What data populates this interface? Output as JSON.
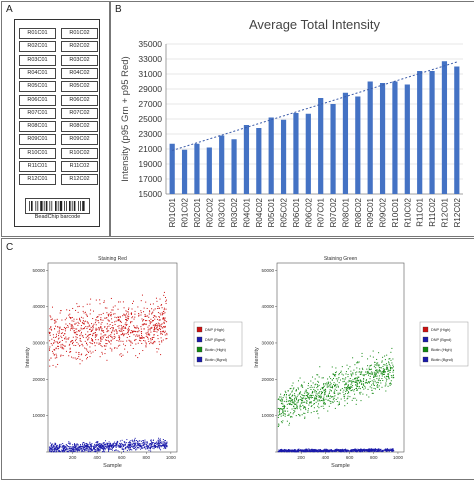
{
  "panel_a": {
    "letter": "A",
    "chip_rows": [
      [
        "R01C01",
        "R01C02"
      ],
      [
        "R02C01",
        "R02C02"
      ],
      [
        "R03C01",
        "R03C02"
      ],
      [
        "R04C01",
        "R04C02"
      ],
      [
        "R05C01",
        "R05C02"
      ],
      [
        "R06C01",
        "R06C02"
      ],
      [
        "R07C01",
        "R07C02"
      ],
      [
        "R08C01",
        "R08C02"
      ],
      [
        "R09C01",
        "R09C02"
      ],
      [
        "R10C01",
        "R10C02"
      ],
      [
        "R11C01",
        "R11C02"
      ],
      [
        "R12C01",
        "R12C02"
      ]
    ],
    "barcode_label": "BeadChip barcode"
  },
  "panel_b": {
    "letter": "B",
    "chart_data": {
      "type": "bar",
      "title": "Average Total Intensity",
      "ylabel": "Intensity (p95 Grn + p95 Red)",
      "xlabel": "",
      "ylim": [
        15000,
        35000
      ],
      "yticks": [
        15000,
        17000,
        19000,
        21000,
        23000,
        25000,
        27000,
        29000,
        31000,
        33000,
        35000
      ],
      "categories": [
        "R01C01",
        "R01C02",
        "R02C01",
        "R02C02",
        "R03C01",
        "R03C02",
        "R04C01",
        "R04C02",
        "R05C01",
        "R05C02",
        "R06C01",
        "R06C02",
        "R07C01",
        "R07C02",
        "R08C01",
        "R08C02",
        "R09C01",
        "R09C02",
        "R10C01",
        "R10C02",
        "R11C01",
        "R11C02",
        "R12C01",
        "R12C02"
      ],
      "values": [
        21700,
        20900,
        21700,
        21200,
        22800,
        22300,
        24200,
        23800,
        25200,
        24900,
        25800,
        25700,
        27800,
        27000,
        28500,
        28000,
        30000,
        29800,
        30000,
        29600,
        31400,
        31400,
        32700,
        32000
      ],
      "trendline": {
        "start": 20800,
        "end": 32600
      },
      "grid": true,
      "bar_color": "#4472c4"
    }
  },
  "panel_c": {
    "letter": "C",
    "charts": [
      {
        "chart_data": {
          "type": "scatter",
          "title": "Staining Red",
          "xlabel": "Sample",
          "ylabel": "Intensity",
          "xlim": [
            0,
            1050
          ],
          "ylim": [
            0,
            52000
          ],
          "xticks": [
            200,
            400,
            600,
            800,
            1000
          ],
          "yticks": [
            0,
            10000,
            20000,
            30000,
            40000,
            50000
          ],
          "series": [
            {
              "name": "DNP (High)",
              "color": "#cc1111",
              "trend": [
                31000,
                36000
              ],
              "spread": 3500
            },
            {
              "name": "DNP (Bgnd)",
              "color": "#1a1aaa",
              "trend": [
                800,
                2200
              ],
              "spread": 700
            }
          ],
          "legend": [
            "DNP (High)",
            "DNP (Bgnd)",
            "Biotin (High)",
            "Biotin (Bgnd)"
          ],
          "legend_colors": [
            "#cc1111",
            "#1a1aaa",
            "#118811",
            "#1a1aaa"
          ]
        }
      },
      {
        "chart_data": {
          "type": "scatter",
          "title": "Staining Green",
          "xlabel": "Sample",
          "ylabel": "Intensity",
          "xlim": [
            0,
            1050
          ],
          "ylim": [
            0,
            52000
          ],
          "xticks": [
            200,
            400,
            600,
            800,
            1000
          ],
          "yticks": [
            0,
            10000,
            20000,
            30000,
            40000,
            50000
          ],
          "series": [
            {
              "name": "Biotin (High)",
              "color": "#118811",
              "trend": [
                12000,
                23000
              ],
              "spread": 2500
            },
            {
              "name": "Biotin (Bgnd)",
              "color": "#1a1aaa",
              "trend": [
                300,
                500
              ],
              "spread": 200
            }
          ],
          "legend": [
            "DNP (High)",
            "DNP (Bgnd)",
            "Biotin (High)",
            "Biotin (Bgnd)"
          ],
          "legend_colors": [
            "#cc1111",
            "#1a1aaa",
            "#118811",
            "#1a1aaa"
          ]
        }
      }
    ]
  }
}
